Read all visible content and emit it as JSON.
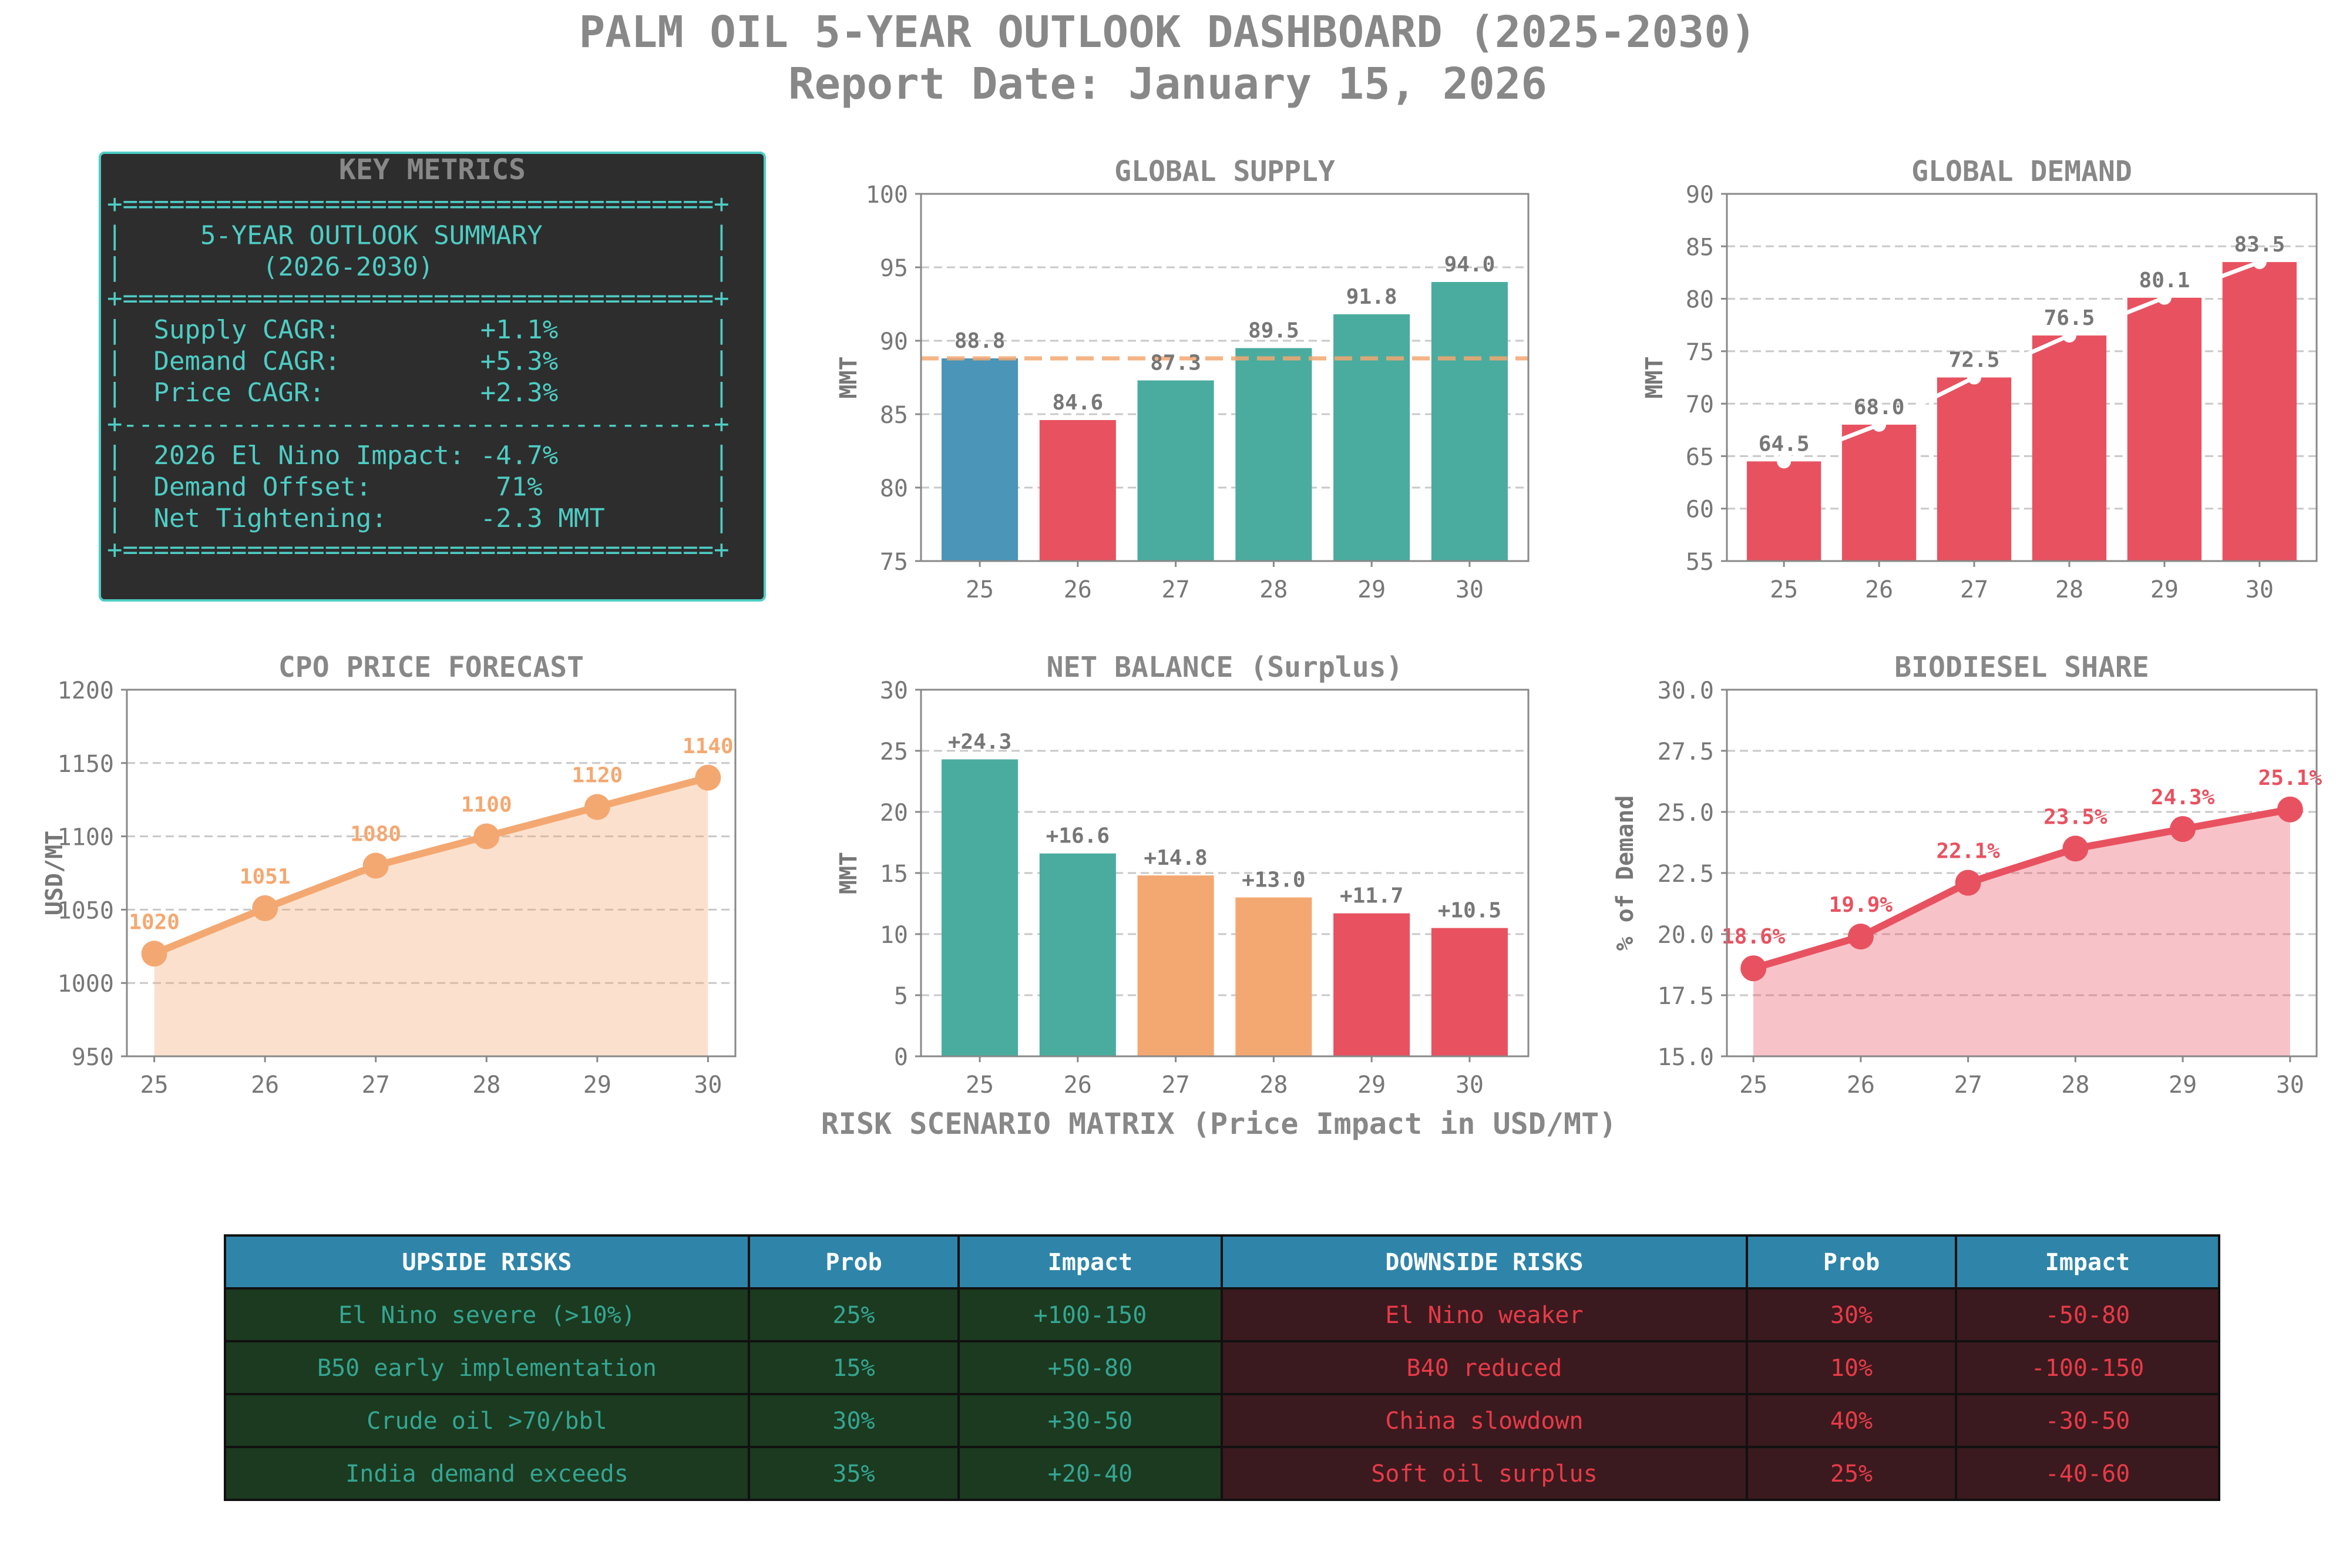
{
  "header": {
    "title": "PALM OIL 5-YEAR OUTLOOK DASHBOARD (2025-2030)",
    "subtitle": "Report Date: January 15, 2026"
  },
  "colors": {
    "teal": "#4aac9f",
    "red": "#e85260",
    "orange": "#f4a871",
    "blue": "#4a95b8",
    "title_gray": "#888888",
    "tick_gray": "#777777",
    "panel_bg": "#2d2d2d",
    "panel_text": "#4ecdc4",
    "table_header_bg": "#2e85a9",
    "upside_bg": "#1b3a1f",
    "upside_text": "#35a593",
    "downside_bg": "#3a1a1e",
    "downside_text": "#e83a48"
  },
  "key_metrics": {
    "title": "KEY METRICS",
    "lines": [
      "+======================================+",
      "|     5-YEAR OUTLOOK SUMMARY           |",
      "|         (2026-2030)                  |",
      "+======================================+",
      "|  Supply CAGR:         +1.1%          |",
      "|  Demand CAGR:         +5.3%          |",
      "|  Price CAGR:          +2.3%          |",
      "+--------------------------------------+",
      "|  2026 El Nino Impact: -4.7%          |",
      "|  Demand Offset:        71%           |",
      "|  Net Tightening:      -2.3 MMT       |",
      "+======================================+"
    ]
  },
  "chart_data": [
    {
      "id": "supply",
      "type": "bar",
      "title": "GLOBAL SUPPLY",
      "ylabel": "MMT",
      "categories": [
        "25",
        "26",
        "27",
        "28",
        "29",
        "30"
      ],
      "values": [
        88.8,
        84.6,
        87.3,
        89.5,
        91.8,
        94.0
      ],
      "labels": [
        "88.8",
        "84.6",
        "87.3",
        "89.5",
        "91.8",
        "94.0"
      ],
      "bar_colors": [
        "blue",
        "red",
        "teal",
        "teal",
        "teal",
        "teal"
      ],
      "reference_line": 88.8,
      "ylim": [
        75,
        100
      ],
      "yticks": [
        75,
        80,
        85,
        90,
        95,
        100
      ],
      "grid": true
    },
    {
      "id": "demand",
      "type": "bar",
      "title": "GLOBAL DEMAND",
      "ylabel": "MMT",
      "categories": [
        "25",
        "26",
        "27",
        "28",
        "29",
        "30"
      ],
      "values": [
        64.5,
        68.0,
        72.5,
        76.5,
        80.1,
        83.5
      ],
      "labels": [
        "64.5",
        "68.0",
        "72.5",
        "76.5",
        "80.1",
        "83.5"
      ],
      "bar_colors": [
        "red",
        "red",
        "red",
        "red",
        "red",
        "red"
      ],
      "overlay_line": true,
      "ylim": [
        55,
        90
      ],
      "yticks": [
        55,
        60,
        65,
        70,
        75,
        80,
        85,
        90
      ],
      "grid": true
    },
    {
      "id": "price",
      "type": "area",
      "title": "CPO PRICE FORECAST",
      "ylabel": "USD/MT",
      "categories": [
        "25",
        "26",
        "27",
        "28",
        "29",
        "30"
      ],
      "values": [
        1020,
        1051,
        1080,
        1100,
        1120,
        1140
      ],
      "labels": [
        "1020",
        "1051",
        "1080",
        "1100",
        "1120",
        "1140"
      ],
      "color": "orange",
      "ylim": [
        950,
        1200
      ],
      "yticks": [
        950,
        1000,
        1050,
        1100,
        1150,
        1200
      ],
      "grid": true
    },
    {
      "id": "balance",
      "type": "bar",
      "title": "NET BALANCE (Surplus)",
      "ylabel": "MMT",
      "categories": [
        "25",
        "26",
        "27",
        "28",
        "29",
        "30"
      ],
      "values": [
        24.3,
        16.6,
        14.8,
        13.0,
        11.7,
        10.5
      ],
      "labels": [
        "+24.3",
        "+16.6",
        "+14.8",
        "+13.0",
        "+11.7",
        "+10.5"
      ],
      "bar_colors": [
        "teal",
        "teal",
        "orange",
        "orange",
        "red",
        "red"
      ],
      "ylim": [
        0,
        30
      ],
      "yticks": [
        0,
        5,
        10,
        15,
        20,
        25,
        30
      ],
      "grid": true
    },
    {
      "id": "biodiesel",
      "type": "area",
      "title": "BIODIESEL SHARE",
      "ylabel": "% of Demand",
      "categories": [
        "25",
        "26",
        "27",
        "28",
        "29",
        "30"
      ],
      "values": [
        18.6,
        19.9,
        22.1,
        23.5,
        24.3,
        25.1
      ],
      "labels": [
        "18.6%",
        "19.9%",
        "22.1%",
        "23.5%",
        "24.3%",
        "25.1%"
      ],
      "color": "red",
      "ylim": [
        15,
        30
      ],
      "yticks": [
        "15.0",
        "17.5",
        "20.0",
        "22.5",
        "25.0",
        "27.5",
        "30.0"
      ],
      "grid": true
    },
    {
      "id": "risk_matrix",
      "type": "table",
      "title": "RISK SCENARIO MATRIX (Price Impact in USD/MT)",
      "columns": [
        "UPSIDE RISKS",
        "Prob",
        "Impact",
        "DOWNSIDE RISKS",
        "Prob",
        "Impact"
      ],
      "rows": [
        [
          "El Nino severe (>10%)",
          "25%",
          "+100-150",
          "El Nino weaker",
          "30%",
          "-50-80"
        ],
        [
          "B50 early implementation",
          "15%",
          "+50-80",
          "B40 reduced",
          "10%",
          "-100-150"
        ],
        [
          "Crude oil >70/bbl",
          "30%",
          "+30-50",
          "China slowdown",
          "40%",
          "-30-50"
        ],
        [
          "India demand exceeds",
          "35%",
          "+20-40",
          "Soft oil surplus",
          "25%",
          "-40-60"
        ]
      ]
    }
  ]
}
